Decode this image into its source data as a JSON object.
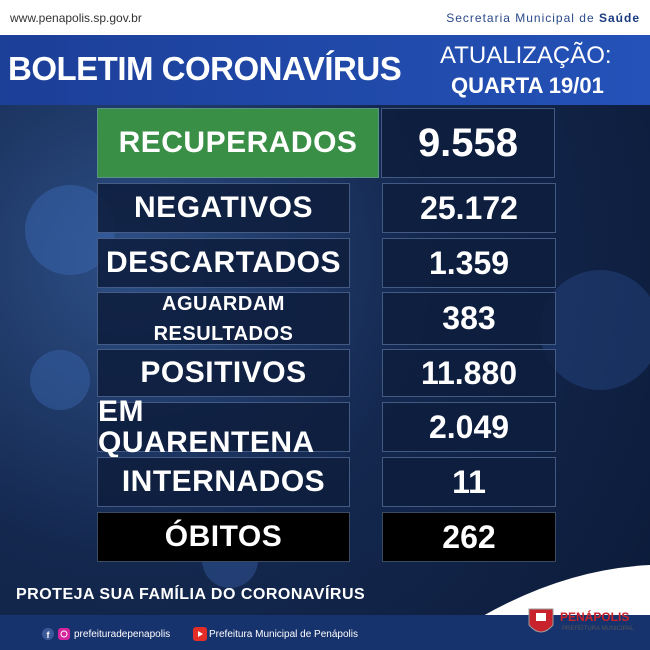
{
  "header": {
    "url": "www.penapolis.sp.gov.br",
    "department_prefix": "Secretaria Municipal de",
    "department_name": "Saúde"
  },
  "banner": {
    "title": "BOLETIM CORONAVÍRUS",
    "update_label": "ATUALIZAÇÃO:",
    "update_date": "QUARTA 19/01"
  },
  "table": {
    "rows": [
      {
        "label_lines": [
          "RECUPERADOS"
        ],
        "value": "9.558"
      },
      {
        "label_lines": [
          "NEGATIVOS"
        ],
        "value": "25.172"
      },
      {
        "label_lines": [
          "DESCARTADOS"
        ],
        "value": "1.359"
      },
      {
        "label_lines": [
          "AGUARDAM",
          "RESULTADOS"
        ],
        "value": "383"
      },
      {
        "label_lines": [
          "POSITIVOS"
        ],
        "value": "11.880"
      },
      {
        "label_lines": [
          "EM QUARENTENA"
        ],
        "value": "2.049"
      },
      {
        "label_lines": [
          "INTERNADOS"
        ],
        "value": "11"
      },
      {
        "label_lines": [
          "ÓBITOS"
        ],
        "value": "262"
      }
    ]
  },
  "slogan": "PROTEJA SUA FAMÍLIA DO CORONAVÍRUS",
  "footer": {
    "social_handle": "prefeituradepenapolis",
    "youtube_channel": "Prefeitura Municipal de Penápolis",
    "logo_name": "PENÁPOLIS",
    "logo_subtitle": "PREFEITURA MUNICIPAL"
  }
}
